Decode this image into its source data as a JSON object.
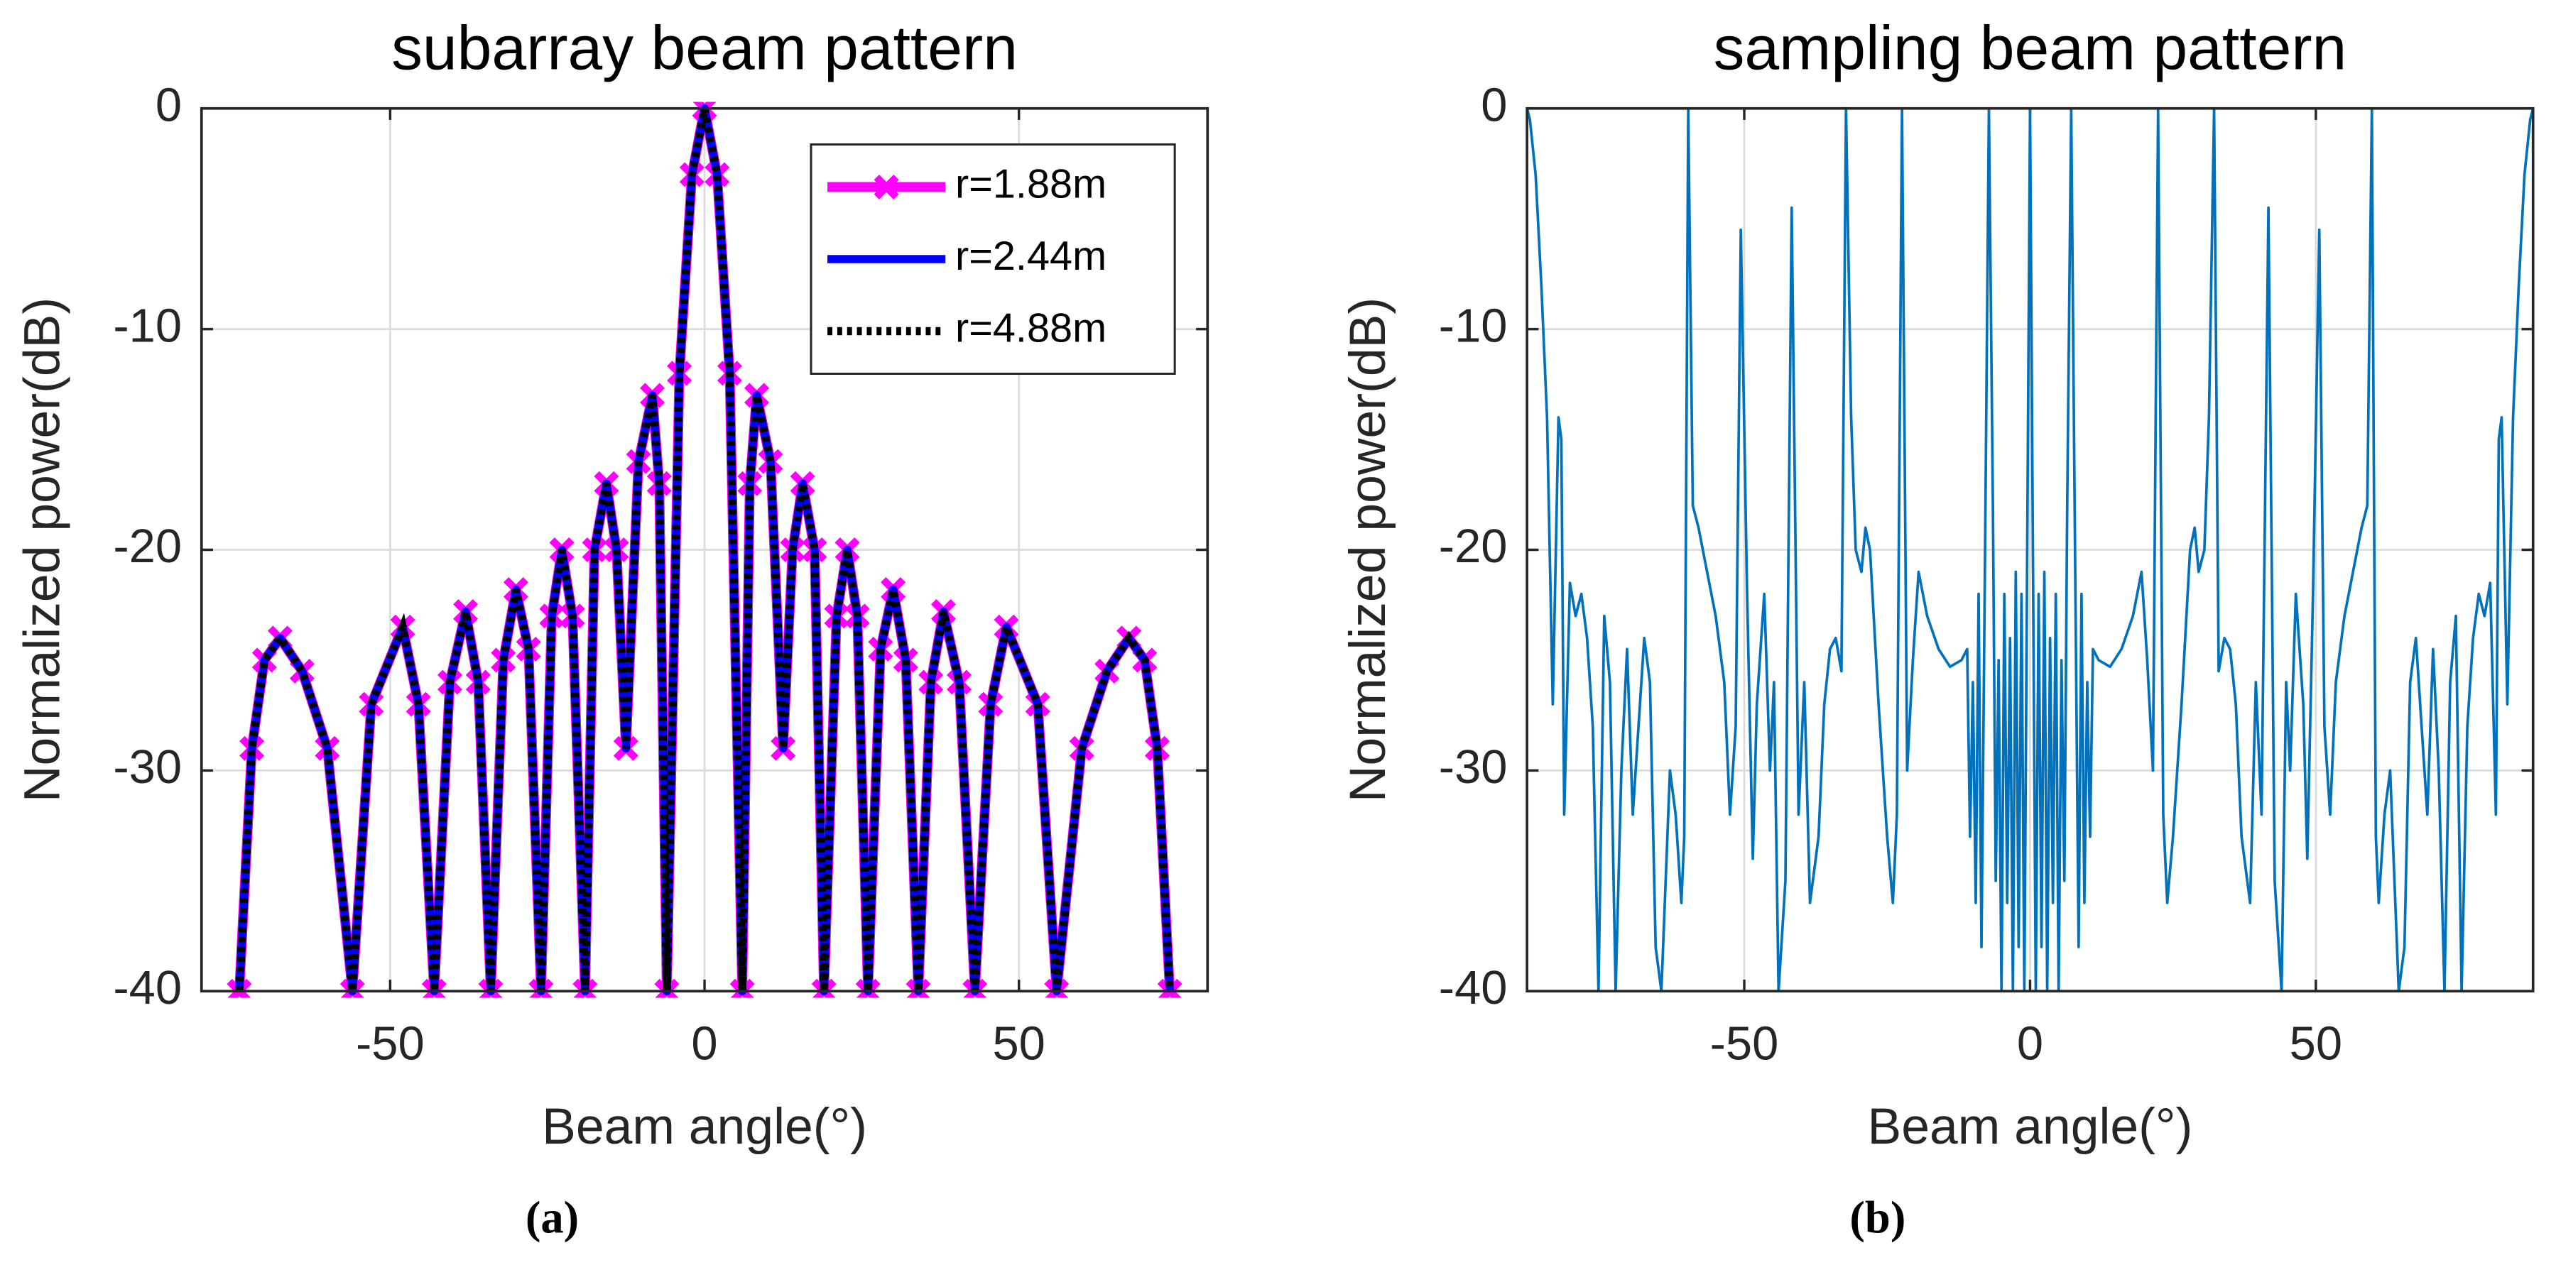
{
  "chart_data": [
    {
      "type": "line",
      "title": "subarray beam pattern",
      "xlabel": "Beam angle(°)",
      "ylabel": "Normalized power(dB)",
      "caption": "(a)",
      "xlim": [
        -80,
        80
      ],
      "ylim": [
        -40,
        0
      ],
      "xticks": [
        -50,
        0,
        50
      ],
      "yticks": [
        0,
        -10,
        -20,
        -30,
        -40
      ],
      "grid": true,
      "legend": "northeast",
      "x": [
        -74,
        -72,
        -70,
        -67.5,
        -64,
        -60,
        -56,
        -53,
        -48,
        -45.5,
        -43,
        -40.5,
        -38,
        -36,
        -34,
        -32,
        -30,
        -28,
        -26,
        -24.3,
        -22.7,
        -21,
        -19,
        -17.5,
        -15.6,
        -14,
        -12.5,
        -10.5,
        -8.3,
        -7.2,
        -6,
        -4,
        -2,
        0,
        2,
        4,
        6,
        7.2,
        8.3,
        10.5,
        12.5,
        14,
        15.6,
        17.5,
        19,
        21,
        22.7,
        24.3,
        26,
        28,
        30,
        32,
        34,
        36,
        38,
        40.5,
        43,
        45.5,
        48,
        53,
        56,
        60,
        64,
        67.5,
        70,
        72,
        74
      ],
      "series": [
        {
          "name": "r=1.88m",
          "color": "#ff00ff",
          "marker": "x",
          "linestyle": "solid",
          "values": [
            -40,
            -29,
            -25,
            -24,
            -25.5,
            -29,
            -40,
            -27,
            -23.5,
            -27,
            -40,
            -26,
            -22.8,
            -26,
            -40,
            -25,
            -21.8,
            -24.5,
            -40,
            -23,
            -20,
            -23,
            -40,
            -20,
            -17,
            -20,
            -29,
            -16,
            -13,
            -17,
            -40,
            -12,
            -3,
            0,
            -3,
            -12,
            -40,
            -17,
            -13,
            -16,
            -29,
            -20,
            -17,
            -20,
            -40,
            -23,
            -20,
            -23,
            -40,
            -24.5,
            -21.8,
            -25,
            -40,
            -26,
            -22.8,
            -26,
            -40,
            -27,
            -23.5,
            -27,
            -40,
            -29,
            -25.5,
            -24,
            -25,
            -29,
            -40
          ]
        },
        {
          "name": "r=2.44m",
          "color": "#0000ff",
          "linestyle": "solid",
          "values": [
            -40,
            -29,
            -25,
            -24,
            -25.5,
            -29,
            -40,
            -27,
            -23.5,
            -27,
            -40,
            -26,
            -22.8,
            -26,
            -40,
            -25,
            -21.8,
            -24.5,
            -40,
            -23,
            -20,
            -23,
            -40,
            -20,
            -17,
            -20,
            -29,
            -16,
            -13,
            -17,
            -40,
            -12,
            -3,
            0,
            -3,
            -12,
            -40,
            -17,
            -13,
            -16,
            -29,
            -20,
            -17,
            -20,
            -40,
            -23,
            -20,
            -23,
            -40,
            -24.5,
            -21.8,
            -25,
            -40,
            -26,
            -22.8,
            -26,
            -40,
            -27,
            -23.5,
            -27,
            -40,
            -29,
            -25.5,
            -24,
            -25,
            -29,
            -40
          ]
        },
        {
          "name": "r=4.88m",
          "color": "#000000",
          "linestyle": "dotted",
          "values": [
            -40,
            -29,
            -25,
            -24,
            -25.5,
            -29,
            -40,
            -27,
            -23.5,
            -27,
            -40,
            -26,
            -22.8,
            -26,
            -40,
            -25,
            -21.8,
            -24.5,
            -40,
            -23,
            -20,
            -23,
            -40,
            -20,
            -17,
            -20,
            -29,
            -16,
            -13,
            -17,
            -40,
            -12,
            -3,
            0,
            -3,
            -12,
            -40,
            -17,
            -13,
            -16,
            -29,
            -20,
            -17,
            -20,
            -40,
            -23,
            -20,
            -23,
            -40,
            -24.5,
            -21.8,
            -25,
            -40,
            -26,
            -22.8,
            -26,
            -40,
            -27,
            -23.5,
            -27,
            -40,
            -29,
            -25.5,
            -24,
            -25,
            -29,
            -40
          ]
        }
      ]
    },
    {
      "type": "line",
      "title": "sampling beam pattern",
      "xlabel": "Beam angle(°)",
      "ylabel": "Normalized power(dB)",
      "caption": "(b)",
      "xlim": [
        -88,
        88
      ],
      "ylim": [
        -40,
        0
      ],
      "xticks": [
        -50,
        0,
        50
      ],
      "yticks": [
        0,
        -10,
        -20,
        -30,
        -40
      ],
      "grid": true,
      "x": [
        -88,
        -87.5,
        -86.5,
        -85.5,
        -84.5,
        -83.5,
        -82.5,
        -82,
        -81.5,
        -80.5,
        -79.5,
        -78.5,
        -77.5,
        -76.5,
        -75.5,
        -74.5,
        -73.5,
        -72.5,
        -71.5,
        -70.5,
        -69.5,
        -68.5,
        -67.5,
        -66.5,
        -65.5,
        -64.5,
        -63,
        -62,
        -61,
        -60.5,
        -59.8,
        -59,
        -58,
        -56.5,
        -55,
        -53.5,
        -52.5,
        -51.5,
        -50.6,
        -49.5,
        -48.5,
        -47.8,
        -46.5,
        -45.5,
        -44.8,
        -44,
        -42.8,
        -41.7,
        -40.5,
        -39.5,
        -38.5,
        -37,
        -36,
        -35,
        -34,
        -33,
        -32.2,
        -31.3,
        -30.5,
        -29.5,
        -28.8,
        -28,
        -26.5,
        -25,
        -24,
        -23.3,
        -22.4,
        -21.5,
        -20.5,
        -19.5,
        -18,
        -16,
        -14,
        -12,
        -11,
        -10.5,
        -10,
        -9.5,
        -9,
        -8.5,
        -7.8,
        -7.2,
        -6.5,
        -6,
        -5.5,
        -5,
        -4.5,
        -4,
        -3.5,
        -3,
        -2.5,
        -2,
        -1.5,
        -1,
        -0.5,
        0,
        0.5,
        1,
        1.5,
        2,
        2.5,
        3,
        3.5,
        4,
        4.5,
        5,
        5.5,
        6,
        6.5,
        7.2,
        7.8,
        8.5,
        9,
        9.5,
        10,
        10.5,
        11,
        12,
        14,
        16,
        18,
        19.5,
        20.5,
        21.5,
        22.4,
        23.3,
        24,
        25,
        26.5,
        28,
        28.8,
        29.5,
        30.5,
        31.3,
        32.2,
        33,
        34,
        35,
        36,
        37,
        38.5,
        39.5,
        40.5,
        41.7,
        42.8,
        44,
        44.8,
        45.5,
        46.5,
        47.8,
        48.5,
        49.5,
        50.6,
        51.5,
        52.5,
        53.5,
        55,
        56.5,
        58,
        59,
        59.8,
        60.5,
        61,
        62,
        63,
        64.5,
        65.5,
        66.5,
        67.5,
        68.5,
        69.5,
        70.5,
        71.5,
        72.5,
        73.5,
        74.5,
        75.5,
        76.5,
        77.5,
        78.5,
        79.5,
        80.5,
        81.5,
        82,
        82.5,
        83.5,
        84.5,
        85.5,
        86.5,
        87.5,
        88
      ],
      "series": [
        {
          "color": "#0072bd",
          "linestyle": "solid",
          "values": [
            0,
            -0.5,
            -3,
            -8,
            -14,
            -27,
            -14,
            -15,
            -32,
            -21.5,
            -23,
            -22,
            -24,
            -28,
            -40,
            -23,
            -26,
            -40,
            -30,
            -24.5,
            -32,
            -28,
            -24,
            -26,
            -38,
            -40,
            -30,
            -32,
            -36,
            -33,
            0,
            -18,
            -19,
            -21,
            -23,
            -26,
            -32,
            -28,
            -5.5,
            -22,
            -34,
            -27,
            -22,
            -30,
            -26,
            -40,
            -35,
            -4.5,
            -32,
            -26,
            -36,
            -33,
            -27,
            -24.5,
            -24,
            -25.5,
            0,
            -14,
            -20,
            -21,
            -19,
            -20,
            -27,
            -33,
            -36,
            -32,
            0,
            -30,
            -25,
            -21,
            -23,
            -24.5,
            -25.3,
            -25,
            -24.5,
            -33,
            -26,
            -36,
            -22,
            -38,
            -18,
            0,
            -18,
            -35,
            -25,
            -40,
            -22,
            -36,
            -24,
            -40,
            -21,
            -38,
            -22,
            -40,
            -20,
            0,
            -20,
            -40,
            -22,
            -38,
            -21,
            -40,
            -24,
            -36,
            -22,
            -40,
            -25,
            -35,
            -18,
            0,
            -18,
            -38,
            -22,
            -36,
            -26,
            -33,
            -24.5,
            -25,
            -25.3,
            -24.5,
            -23,
            -21,
            -25,
            -30,
            0,
            -32,
            -36,
            -33,
            -27,
            -20,
            -19,
            -21,
            -20,
            -14,
            0,
            -25.5,
            -24,
            -24.5,
            -27,
            -33,
            -36,
            -26,
            -32,
            -4.5,
            -35,
            -40,
            -26,
            -30,
            -22,
            -27,
            -34,
            -22,
            -5.5,
            -28,
            -32,
            -26,
            -23,
            -21,
            -19,
            -18,
            0,
            -33,
            -36,
            -32,
            -30,
            -40,
            -38,
            -26,
            -24,
            -28,
            -32,
            -24.5,
            -30,
            -40,
            -26,
            -23,
            -40,
            -28,
            -24,
            -22,
            -23,
            -21.5,
            -32,
            -15,
            -14,
            -27,
            -14,
            -8,
            -3,
            -0.5,
            0
          ]
        }
      ]
    }
  ]
}
